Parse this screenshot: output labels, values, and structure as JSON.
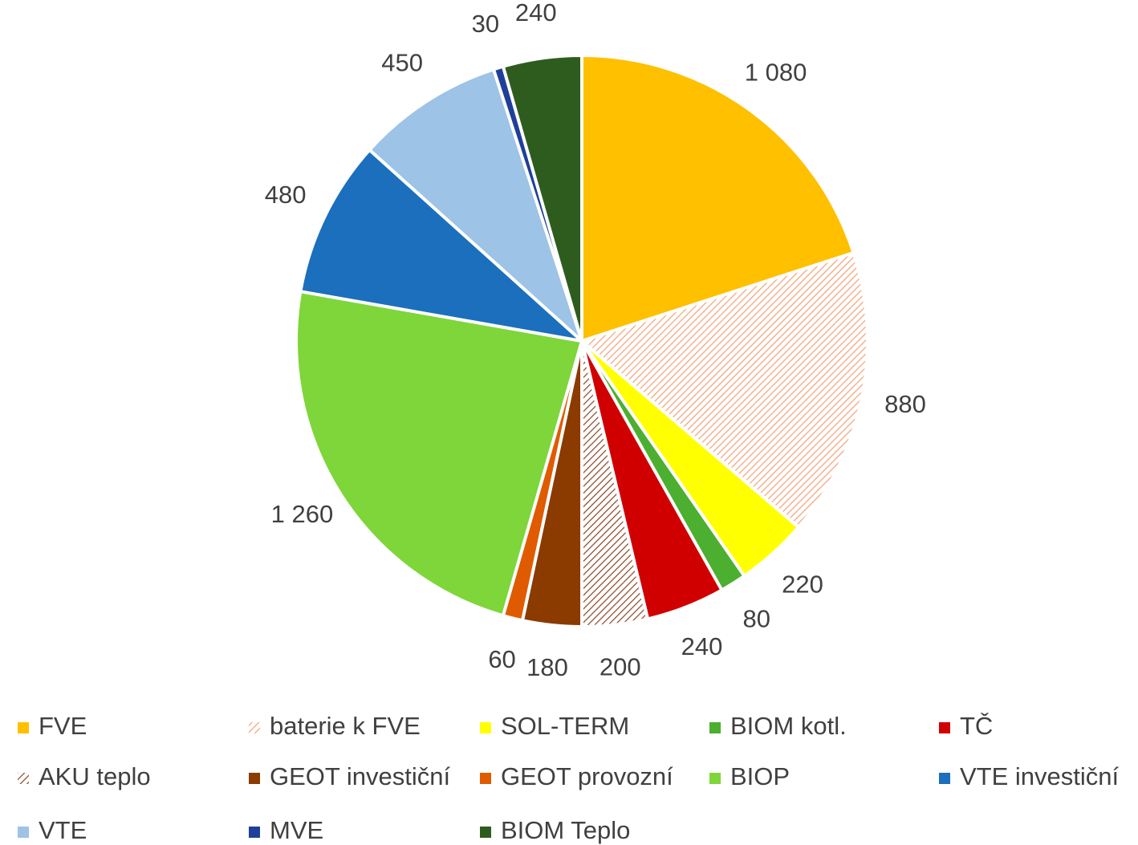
{
  "chart_data": {
    "type": "pie",
    "categories": [
      "FVE",
      "baterie k FVE",
      "SOL-TERM",
      "BIOM kotl.",
      "TČ",
      "AKU teplo",
      "GEOT investiční",
      "GEOT provozní",
      "BIOP",
      "VTE investiční",
      "VTE",
      "MVE",
      "BIOM Teplo"
    ],
    "values": [
      1080,
      880,
      220,
      80,
      240,
      200,
      180,
      60,
      1260,
      480,
      450,
      30,
      240
    ],
    "value_labels": [
      "1 080",
      "880",
      "220",
      "80",
      "240",
      "200",
      "180",
      "60",
      "1 260",
      "480",
      "450",
      "30",
      "240"
    ],
    "colors": [
      "#ffc000",
      "#f4a37a",
      "#ffff00",
      "#4caf30",
      "#d00000",
      "#8b4a2a",
      "#8b3a00",
      "#e05a00",
      "#7ed63a",
      "#1b6fbd",
      "#9dc3e6",
      "#1f3f99",
      "#2e5c1e"
    ],
    "hatched": [
      "baterie k FVE",
      "AKU teplo"
    ],
    "legend": "bottom"
  }
}
